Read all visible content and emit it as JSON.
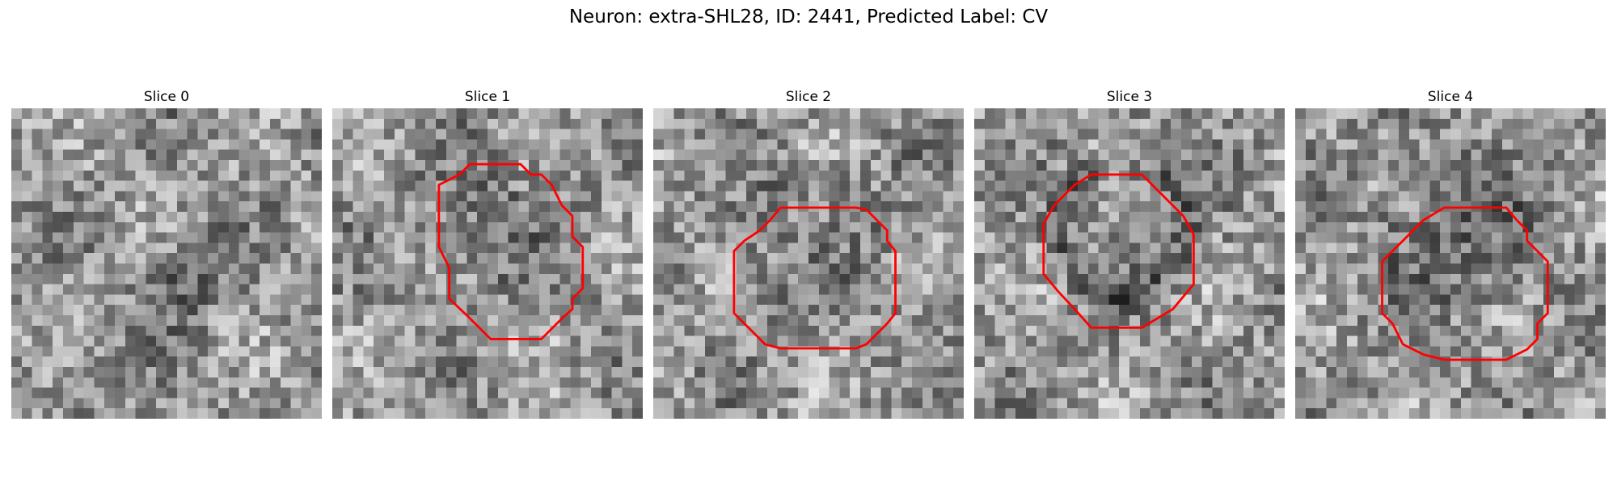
{
  "figure": {
    "title": "Neuron: extra-SHL28, ID: 2441, Predicted Label: CV"
  },
  "colors": {
    "contour": "#ff0000",
    "colormap": "gray"
  },
  "slices": [
    {
      "title": "Slice 0",
      "has_contour": false
    },
    {
      "title": "Slice 1",
      "has_contour": true
    },
    {
      "title": "Slice 2",
      "has_contour": true
    },
    {
      "title": "Slice 3",
      "has_contour": true
    },
    {
      "title": "Slice 4",
      "has_contour": true
    }
  ]
}
